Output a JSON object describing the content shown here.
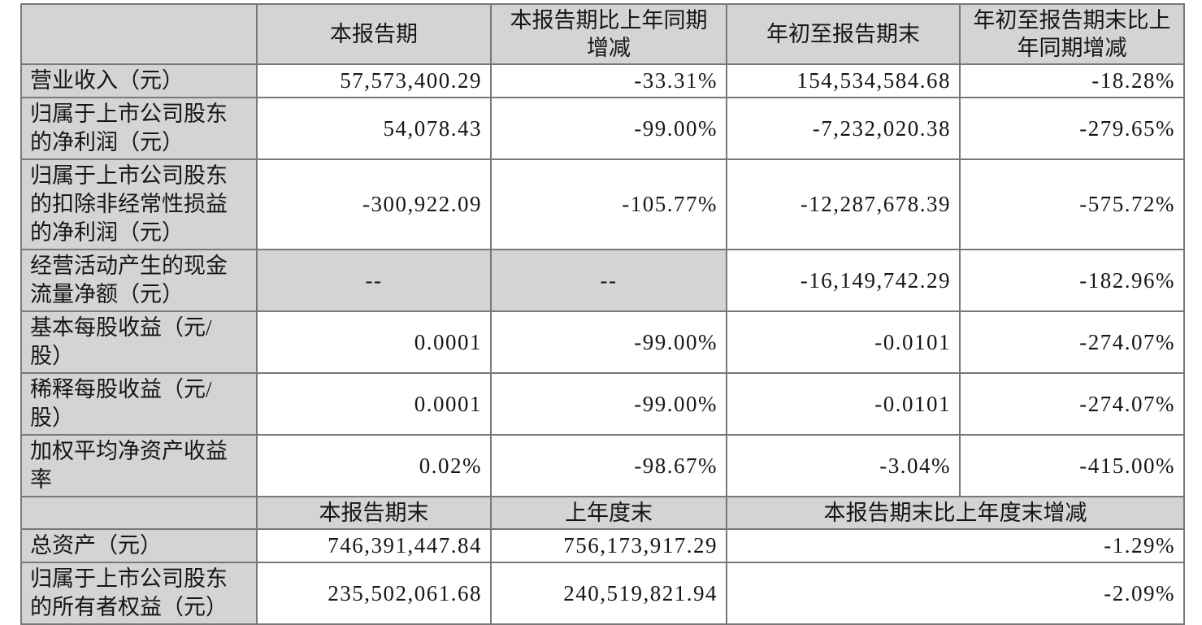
{
  "colors": {
    "header_fill": "#d4d4d4",
    "cell_fill": "#ffffff",
    "grid_line": "#787878",
    "text": "#161616"
  },
  "table": {
    "header": {
      "col0": "",
      "col1": "本报告期",
      "col2": "本报告期比上年同期\n增减",
      "col3": "年初至报告期末",
      "col4": "年初至报告期末比上\n年同期增减"
    },
    "rows": [
      {
        "label": "营业收入（元）",
        "current": "57,573,400.29",
        "current_vs": "-33.31%",
        "ytd": "154,534,584.68",
        "ytd_vs": "-18.28%"
      },
      {
        "label": "归属于上市公司股东\n的净利润（元）",
        "current": "54,078.43",
        "current_vs": "-99.00%",
        "ytd": "-7,232,020.38",
        "ytd_vs": "-279.65%"
      },
      {
        "label": "归属于上市公司股东\n的扣除非经常性损益\n的净利润（元）",
        "current": "-300,922.09",
        "current_vs": "-105.77%",
        "ytd": "-12,287,678.39",
        "ytd_vs": "-575.72%"
      },
      {
        "label": "经营活动产生的现金\n流量净额（元）",
        "current": "--",
        "current_vs": "--",
        "ytd": "-16,149,742.29",
        "ytd_vs": "-182.96%"
      },
      {
        "label": "基本每股收益（元/\n股）",
        "current": "0.0001",
        "current_vs": "-99.00%",
        "ytd": "-0.0101",
        "ytd_vs": "-274.07%"
      },
      {
        "label": "稀释每股收益（元/\n股）",
        "current": "0.0001",
        "current_vs": "-99.00%",
        "ytd": "-0.0101",
        "ytd_vs": "-274.07%"
      },
      {
        "label": "加权平均净资产收益\n率",
        "current": "0.02%",
        "current_vs": "-98.67%",
        "ytd": "-3.04%",
        "ytd_vs": "-415.00%"
      }
    ],
    "subheader": {
      "col0": "",
      "col1": "本报告期末",
      "col2": "上年度末",
      "col34": "本报告期末比上年度末增减"
    },
    "bottom_rows": [
      {
        "label": "总资产（元）",
        "period_end": "746,391,447.84",
        "prev_year_end": "756,173,917.29",
        "vs": "-1.29%"
      },
      {
        "label": "归属于上市公司股东\n的所有者权益（元）",
        "period_end": "235,502,061.68",
        "prev_year_end": "240,519,821.94",
        "vs": "-2.09%"
      }
    ]
  }
}
